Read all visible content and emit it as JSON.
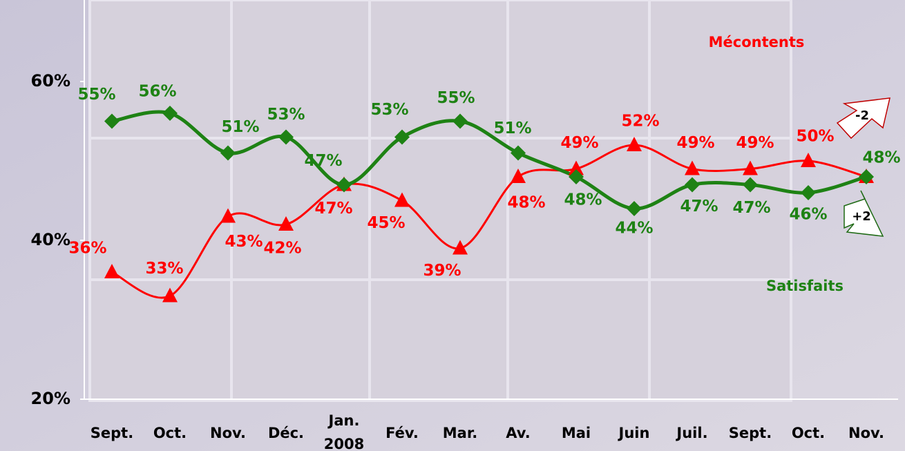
{
  "chart_data": {
    "type": "line",
    "categories": [
      "Sept.",
      "Oct.",
      "Nov.",
      "Déc.",
      "Jan. 2008",
      "Fév.",
      "Mar.",
      "Av.",
      "Mai",
      "Juin",
      "Juil.",
      "Sept.",
      "Oct.",
      "Nov."
    ],
    "series": [
      {
        "name": "Mécontents",
        "color": "#ff0000",
        "marker": "triangle",
        "values": [
          36,
          33,
          43,
          42,
          47,
          45,
          39,
          48,
          49,
          52,
          49,
          49,
          50,
          48
        ],
        "value_labels": [
          "36%",
          "33%",
          "43%",
          "42%",
          "47%",
          "45%",
          "39%",
          "48%",
          "49%",
          "52%",
          "49%",
          "49%",
          "50%",
          null
        ]
      },
      {
        "name": "Satisfaits",
        "color": "#1e8214",
        "marker": "diamond",
        "values": [
          55,
          56,
          51,
          53,
          47,
          53,
          55,
          51,
          48,
          44,
          47,
          47,
          46,
          48
        ],
        "value_labels": [
          "55%",
          "56%",
          "51%",
          "53%",
          "47%",
          "53%",
          "55%",
          "51%",
          "48%",
          "44%",
          "47%",
          "47%",
          "46%",
          "48%"
        ]
      }
    ],
    "annotations": [
      "-2",
      "+2"
    ],
    "ylim": [
      20,
      70
    ],
    "yticks": [
      {
        "value": 20,
        "label": "20%"
      },
      {
        "value": 40,
        "label": "40%"
      },
      {
        "value": 60,
        "label": "60%"
      }
    ],
    "grid": false
  }
}
